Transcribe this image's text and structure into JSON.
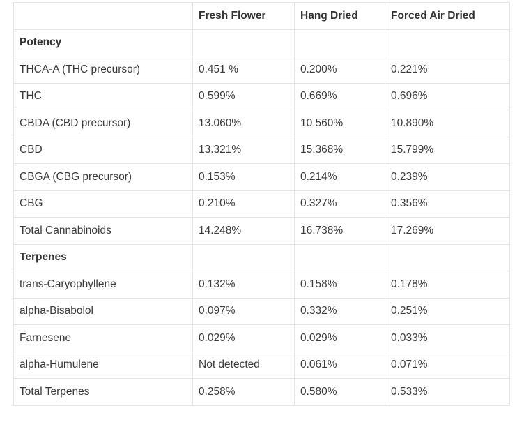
{
  "table": {
    "headers": [
      "",
      "Fresh Flower",
      "Hang Dried",
      "Forced Air Dried"
    ],
    "sections": [
      {
        "title": "Potency",
        "rows": [
          [
            "THCA-A (THC precursor)",
            "0.451 %",
            "0.200%",
            "0.221%"
          ],
          [
            "THC",
            "0.599%",
            "0.669%",
            "0.696%"
          ],
          [
            "CBDA (CBD precursor)",
            "13.060%",
            "10.560%",
            "10.890%"
          ],
          [
            "CBD",
            "13.321%",
            "15.368%",
            "15.799%"
          ],
          [
            "CBGA (CBG precursor)",
            "0.153%",
            "0.214%",
            "0.239%"
          ],
          [
            "CBG",
            "0.210%",
            "0.327%",
            "0.356%"
          ],
          [
            "Total Cannabinoids",
            "14.248%",
            "16.738%",
            "17.269%"
          ]
        ]
      },
      {
        "title": "Terpenes",
        "rows": [
          [
            "trans-Caryophyllene",
            "0.132%",
            "0.158%",
            "0.178%"
          ],
          [
            "alpha-Bisabolol",
            "0.097%",
            "0.332%",
            "0.251%"
          ],
          [
            "Farnesene",
            "0.029%",
            "0.029%",
            "0.033%"
          ],
          [
            "alpha-Humulene",
            "Not detected",
            "0.061%",
            "0.071%"
          ],
          [
            "Total Terpenes",
            "0.258%",
            "0.580%",
            "0.533%"
          ]
        ]
      }
    ]
  }
}
